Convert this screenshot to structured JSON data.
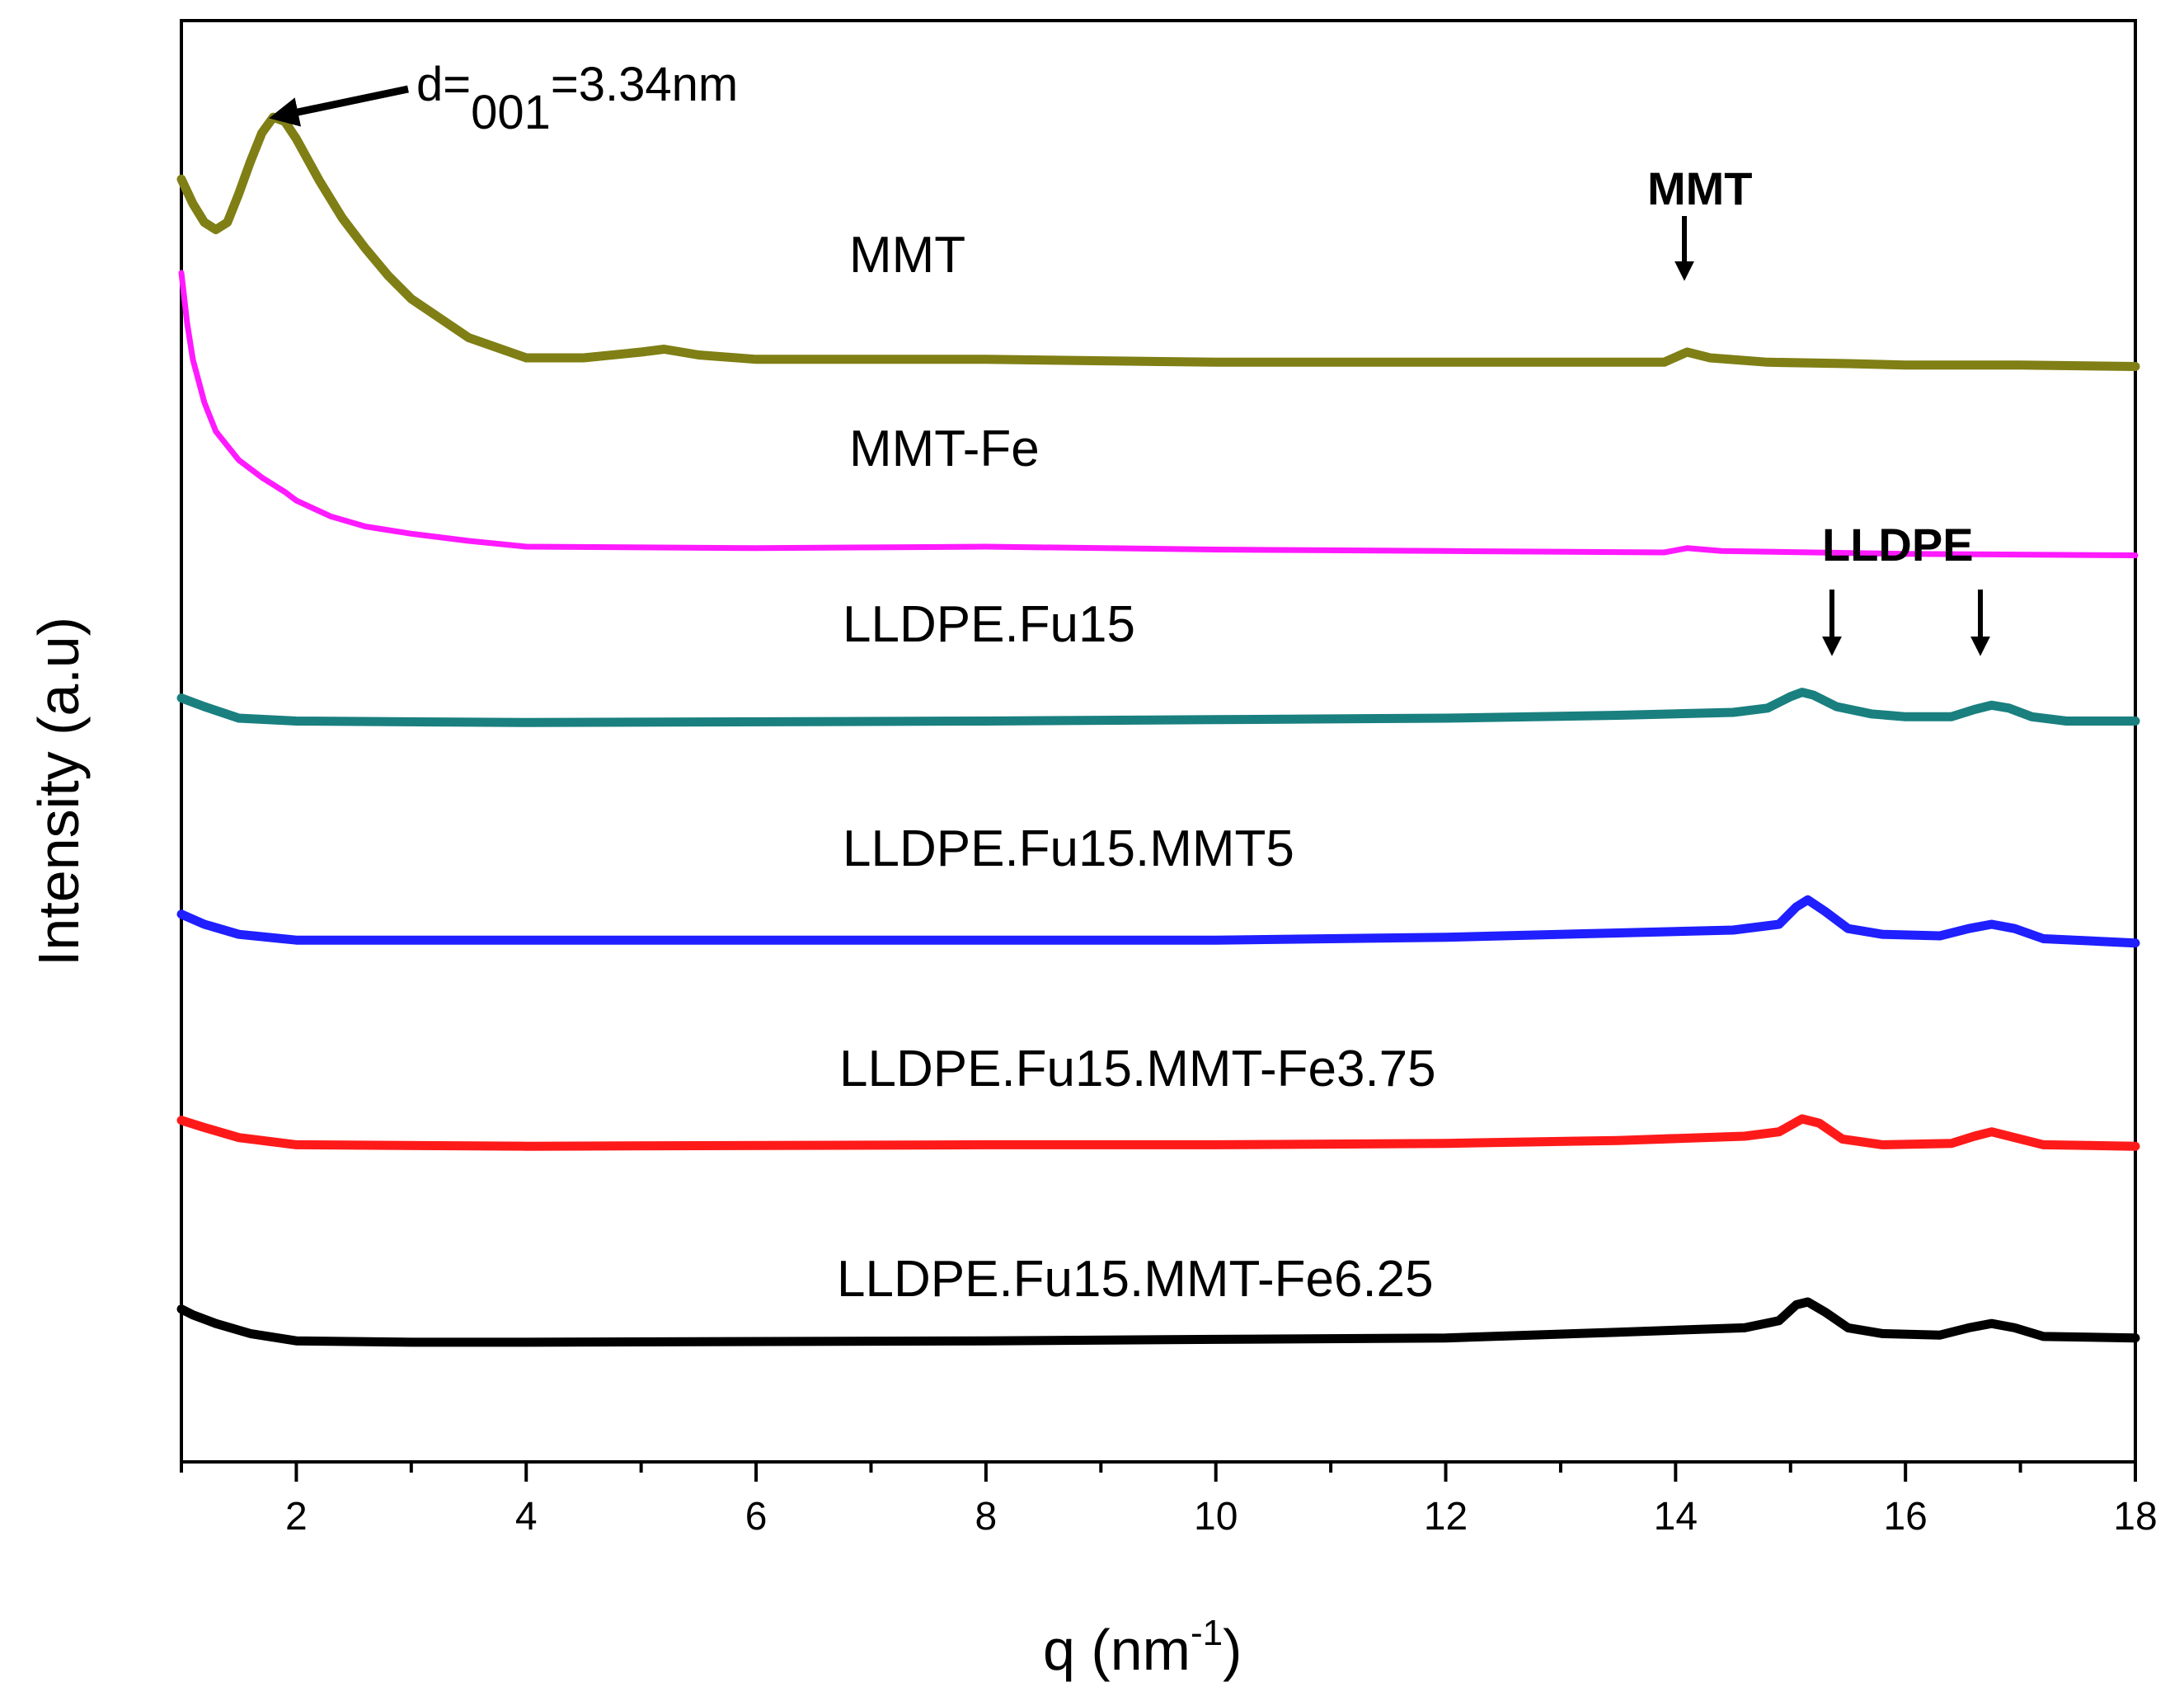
{
  "chart_data": {
    "type": "line",
    "xlabel": "q (nm",
    "xlabel_sup": "-1",
    "xlabel_suffix": ")",
    "ylabel": "Intensity (a.u)",
    "xlim": [
      1,
      18
    ],
    "ylim": [
      0,
      100
    ],
    "xticks": [
      2,
      4,
      6,
      8,
      10,
      12,
      14,
      16,
      18
    ],
    "xtick_labels": [
      "2",
      "4",
      "6",
      "8",
      "10",
      "12",
      "14",
      "16",
      "18"
    ],
    "grid": false,
    "series": [
      {
        "name": "MMT",
        "label": "MMT",
        "color": "#7f7f15",
        "points": [
          [
            1.0,
            89.0
          ],
          [
            1.1,
            87.3
          ],
          [
            1.2,
            86.0
          ],
          [
            1.3,
            85.5
          ],
          [
            1.4,
            86.0
          ],
          [
            1.5,
            88.0
          ],
          [
            1.6,
            90.2
          ],
          [
            1.7,
            92.2
          ],
          [
            1.8,
            93.3
          ],
          [
            1.9,
            93.0
          ],
          [
            2.0,
            91.8
          ],
          [
            2.2,
            88.9
          ],
          [
            2.4,
            86.3
          ],
          [
            2.6,
            84.2
          ],
          [
            2.8,
            82.3
          ],
          [
            3.0,
            80.7
          ],
          [
            3.5,
            78.0
          ],
          [
            4.0,
            76.6
          ],
          [
            4.5,
            76.6
          ],
          [
            5.0,
            77.0
          ],
          [
            5.2,
            77.2
          ],
          [
            5.5,
            76.8
          ],
          [
            6.0,
            76.5
          ],
          [
            8.0,
            76.5
          ],
          [
            10.0,
            76.3
          ],
          [
            12.0,
            76.3
          ],
          [
            13.5,
            76.3
          ],
          [
            13.9,
            76.3
          ],
          [
            14.1,
            77.0
          ],
          [
            14.3,
            76.6
          ],
          [
            14.8,
            76.3
          ],
          [
            15.5,
            76.2
          ],
          [
            16.0,
            76.1
          ],
          [
            17.0,
            76.1
          ],
          [
            18.0,
            76.0
          ]
        ]
      },
      {
        "name": "MMT-Fe",
        "label": "MMT-Fe",
        "color": "#ff1aff",
        "points": [
          [
            1.0,
            82.5
          ],
          [
            1.05,
            79.0
          ],
          [
            1.1,
            76.5
          ],
          [
            1.2,
            73.5
          ],
          [
            1.3,
            71.5
          ],
          [
            1.5,
            69.5
          ],
          [
            1.7,
            68.3
          ],
          [
            1.9,
            67.3
          ],
          [
            2.0,
            66.7
          ],
          [
            2.3,
            65.6
          ],
          [
            2.6,
            64.9
          ],
          [
            3.0,
            64.4
          ],
          [
            3.5,
            63.9
          ],
          [
            4.0,
            63.5
          ],
          [
            6.0,
            63.4
          ],
          [
            8.0,
            63.5
          ],
          [
            10.0,
            63.3
          ],
          [
            12.0,
            63.2
          ],
          [
            13.9,
            63.1
          ],
          [
            14.1,
            63.4
          ],
          [
            14.4,
            63.2
          ],
          [
            16.0,
            63.0
          ],
          [
            18.0,
            62.9
          ]
        ]
      },
      {
        "name": "LLDPE.Fu15",
        "label": "LLDPE.Fu15",
        "color": "#1a7f7f",
        "points": [
          [
            1.0,
            53.0
          ],
          [
            1.2,
            52.4
          ],
          [
            1.5,
            51.6
          ],
          [
            2.0,
            51.4
          ],
          [
            4.0,
            51.3
          ],
          [
            8.0,
            51.4
          ],
          [
            10.0,
            51.5
          ],
          [
            12.0,
            51.6
          ],
          [
            13.5,
            51.8
          ],
          [
            14.5,
            52.0
          ],
          [
            14.8,
            52.3
          ],
          [
            15.0,
            53.1
          ],
          [
            15.1,
            53.4
          ],
          [
            15.2,
            53.2
          ],
          [
            15.4,
            52.4
          ],
          [
            15.7,
            51.9
          ],
          [
            16.0,
            51.7
          ],
          [
            16.4,
            51.7
          ],
          [
            16.6,
            52.2
          ],
          [
            16.75,
            52.5
          ],
          [
            16.9,
            52.3
          ],
          [
            17.1,
            51.7
          ],
          [
            17.4,
            51.4
          ],
          [
            18.0,
            51.4
          ]
        ]
      },
      {
        "name": "LLDPE.Fu15.MMT5",
        "label": "LLDPE.Fu15.MMT5",
        "color": "#1f1fff",
        "points": [
          [
            1.0,
            38.0
          ],
          [
            1.2,
            37.3
          ],
          [
            1.5,
            36.6
          ],
          [
            2.0,
            36.2
          ],
          [
            4.0,
            36.2
          ],
          [
            8.0,
            36.2
          ],
          [
            10.0,
            36.2
          ],
          [
            12.0,
            36.4
          ],
          [
            13.5,
            36.7
          ],
          [
            14.5,
            36.9
          ],
          [
            14.9,
            37.3
          ],
          [
            15.05,
            38.5
          ],
          [
            15.15,
            39.0
          ],
          [
            15.3,
            38.2
          ],
          [
            15.5,
            37.0
          ],
          [
            15.8,
            36.6
          ],
          [
            16.3,
            36.5
          ],
          [
            16.55,
            37.0
          ],
          [
            16.75,
            37.3
          ],
          [
            16.95,
            37.0
          ],
          [
            17.2,
            36.3
          ],
          [
            18.0,
            36.0
          ]
        ]
      },
      {
        "name": "LLDPE.Fu15.MMT-Fe3.75",
        "label": "LLDPE.Fu15.MMT-Fe3.75",
        "color": "#ff1a1a",
        "points": [
          [
            1.0,
            23.7
          ],
          [
            1.2,
            23.2
          ],
          [
            1.5,
            22.5
          ],
          [
            2.0,
            22.0
          ],
          [
            4.0,
            21.9
          ],
          [
            8.0,
            22.0
          ],
          [
            10.0,
            22.0
          ],
          [
            12.0,
            22.1
          ],
          [
            13.5,
            22.3
          ],
          [
            14.6,
            22.6
          ],
          [
            14.9,
            22.9
          ],
          [
            15.1,
            23.8
          ],
          [
            15.25,
            23.5
          ],
          [
            15.45,
            22.4
          ],
          [
            15.8,
            22.0
          ],
          [
            16.4,
            22.1
          ],
          [
            16.6,
            22.6
          ],
          [
            16.75,
            22.9
          ],
          [
            16.95,
            22.5
          ],
          [
            17.2,
            22.0
          ],
          [
            18.0,
            21.9
          ]
        ]
      },
      {
        "name": "LLDPE.Fu15.MMT-Fe6.25",
        "label": "LLDPE.Fu15.MMT-Fe6.25",
        "color": "#000000",
        "points": [
          [
            1.0,
            10.6
          ],
          [
            1.1,
            10.2
          ],
          [
            1.3,
            9.6
          ],
          [
            1.6,
            8.9
          ],
          [
            2.0,
            8.4
          ],
          [
            3.0,
            8.3
          ],
          [
            4.0,
            8.3
          ],
          [
            8.0,
            8.4
          ],
          [
            10.0,
            8.5
          ],
          [
            12.0,
            8.6
          ],
          [
            13.5,
            9.0
          ],
          [
            14.6,
            9.3
          ],
          [
            14.9,
            9.8
          ],
          [
            15.05,
            10.9
          ],
          [
            15.15,
            11.1
          ],
          [
            15.3,
            10.4
          ],
          [
            15.5,
            9.3
          ],
          [
            15.8,
            8.9
          ],
          [
            16.3,
            8.8
          ],
          [
            16.55,
            9.3
          ],
          [
            16.75,
            9.6
          ],
          [
            16.95,
            9.3
          ],
          [
            17.2,
            8.7
          ],
          [
            18.0,
            8.6
          ]
        ]
      }
    ],
    "annotations": {
      "d001_prefix": "d=",
      "d001_subscript": "001",
      "d001_suffix": "=3.34nm",
      "mmt_peak": "MMT",
      "lldpe_peak": "LLDPE"
    }
  }
}
